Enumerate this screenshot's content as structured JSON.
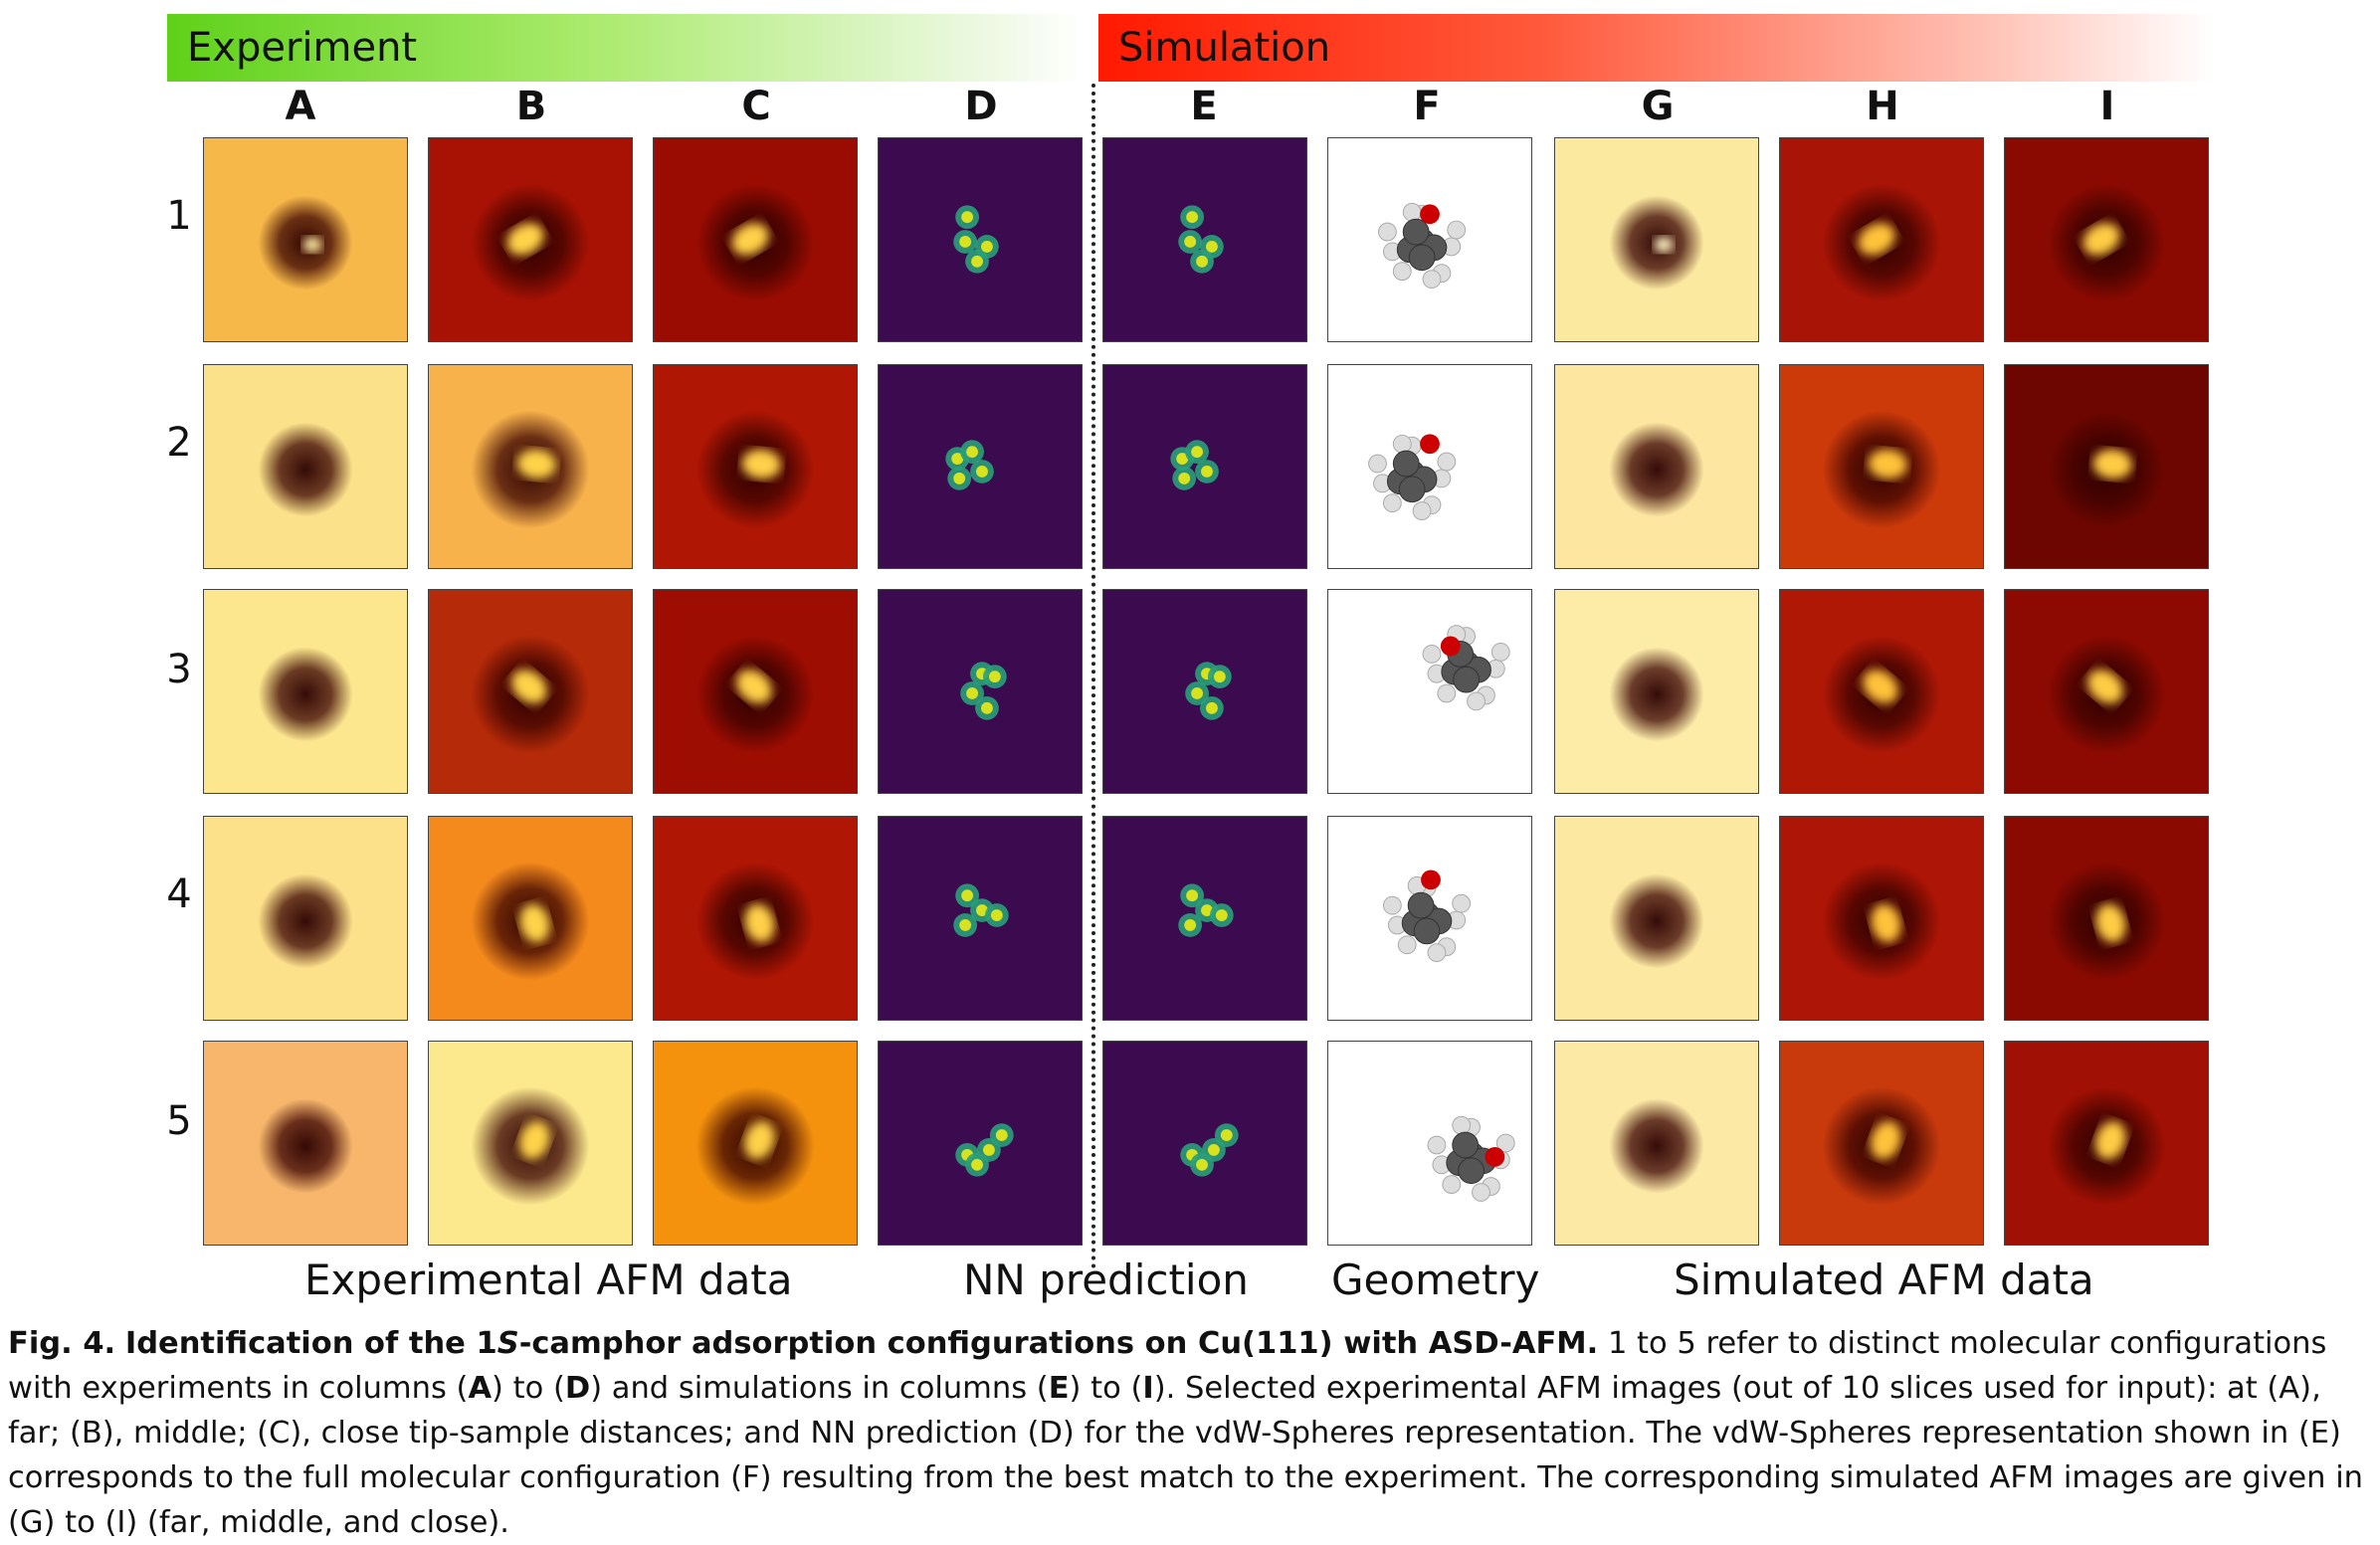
{
  "banners": {
    "experiment": "Experiment",
    "simulation": "Simulation"
  },
  "columns": [
    "A",
    "B",
    "C",
    "D",
    "E",
    "F",
    "G",
    "H",
    "I"
  ],
  "rows": [
    "1",
    "2",
    "3",
    "4",
    "5"
  ],
  "groups": {
    "experimental": "Experimental AFM data",
    "nn": "NN prediction",
    "geometry": "Geometry",
    "simulated": "Simulated AFM data"
  },
  "caption": {
    "fig_label": "Fig. 4.",
    "title_pre": "Identification of the 1",
    "title_italic": "S",
    "title_post": "-camphor adsorption configurations on Cu(111) with ASD-AFM.",
    "body1": "1 to 5 refer to distinct molecular configurations with experiments in columns (",
    "colA": "A",
    "to1": ") to (",
    "colD": "D",
    "body2": ") and simulations in columns (",
    "colE": "E",
    "to2": ") to (",
    "colI": "I",
    "body3": "). Selected experimental AFM images (out of 10 slices used for input): at (A), far; (B), middle; (C), close tip-sample distances; and NN prediction (D) for the vdW-Spheres representation. The vdW-Spheres representation shown in (E) corresponds to the full molecular configuration (F) resulting from the best match to the experiment. The corresponding simulated AFM images are given in (G) to (I) (far, middle, and close)."
  },
  "colors": {
    "experiment_banner": "#5fd11a",
    "simulation_banner": "#ff1a00",
    "nn_background": "#3b0a4f",
    "oxygen_atom": "#cc0000",
    "carbon_atom": "#555555",
    "hydrogen_atom": "#dddddd"
  }
}
